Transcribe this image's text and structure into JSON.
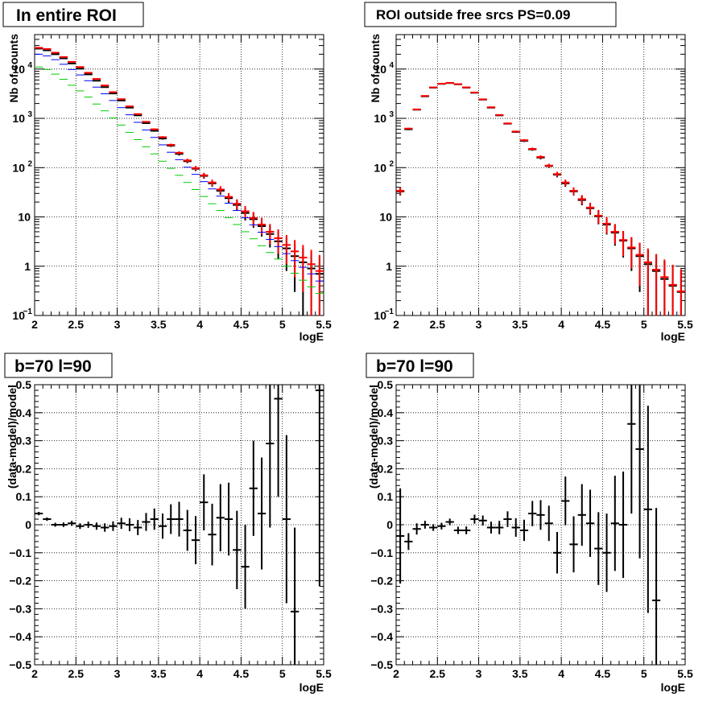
{
  "chart_data": [
    {
      "type": "scatter",
      "title": "In entire ROI",
      "xlabel": "logE",
      "ylabel": "Nb of counts",
      "xlim": [
        2,
        5.5
      ],
      "ylim": [
        0.1,
        50000
      ],
      "log_y": true,
      "grid": true,
      "legend": "none",
      "x_ticks": [
        "2",
        "2.5",
        "3",
        "3.5",
        "4",
        "4.5",
        "5",
        "5.5"
      ],
      "y_ticks": [
        {
          "base": "10",
          "exp": "−1",
          "value": 0.1
        },
        {
          "base": "1",
          "exp": "",
          "value": 1
        },
        {
          "base": "10",
          "exp": "",
          "value": 10
        },
        {
          "base": "10",
          "exp": "2",
          "value": 100
        },
        {
          "base": "10",
          "exp": "3",
          "value": 1000
        },
        {
          "base": "10",
          "exp": "4",
          "value": 10000
        }
      ],
      "x": [
        2.05,
        2.15,
        2.25,
        2.35,
        2.45,
        2.55,
        2.65,
        2.75,
        2.85,
        2.95,
        3.05,
        3.15,
        3.25,
        3.35,
        3.45,
        3.55,
        3.65,
        3.75,
        3.85,
        3.95,
        4.05,
        4.15,
        4.25,
        4.35,
        4.45,
        4.55,
        4.65,
        4.75,
        4.85,
        4.95,
        5.05,
        5.15,
        5.25,
        5.35,
        5.45
      ],
      "series": [
        {
          "color": "#000000",
          "width": 2,
          "values": [
            26000,
            24000,
            20000,
            16500,
            13000,
            10200,
            7800,
            5800,
            4300,
            3200,
            2300,
            1650,
            1150,
            800,
            560,
            390,
            280,
            190,
            135,
            95,
            68,
            48,
            34,
            24,
            17.5,
            12,
            9,
            6.5,
            4.5,
            3.2,
            2.3,
            1.6,
            1.2,
            0.9,
            0.7
          ],
          "errors": [
            160,
            155,
            140,
            128,
            114,
            101,
            88,
            76,
            66,
            57,
            48,
            41,
            34,
            28,
            24,
            20,
            17,
            14,
            12,
            10,
            8.2,
            6.9,
            5.8,
            4.9,
            4.2,
            3.5,
            3,
            2.5,
            2.1,
            1.8,
            1.5,
            1.3,
            1.1,
            0.95,
            0.84
          ]
        },
        {
          "color": "#ff0000",
          "width": 2,
          "values": [
            27000,
            25500,
            21500,
            17500,
            14000,
            11000,
            8400,
            6300,
            4650,
            3400,
            2450,
            1750,
            1220,
            850,
            600,
            415,
            290,
            200,
            140,
            98,
            70,
            50,
            36,
            25.5,
            18.5,
            13,
            9.5,
            7,
            5,
            3.7,
            2.7,
            2,
            1.5,
            1.1,
            0.8
          ],
          "errors": [
            164,
            160,
            147,
            132,
            118,
            105,
            92,
            79,
            68,
            58,
            49,
            42,
            35,
            29,
            24,
            20,
            17,
            14,
            12,
            9.9,
            8.4,
            7.1,
            6,
            5,
            4.3,
            3.6,
            3.1,
            2.6,
            2.2,
            1.9,
            1.6,
            1.4,
            1.2,
            1.05,
            0.89
          ]
        },
        {
          "color": "#0000ff",
          "width": 1,
          "values": [
            20000,
            18500,
            15500,
            12500,
            9800,
            7600,
            5800,
            4300,
            3150,
            2300,
            1650,
            1180,
            830,
            580,
            410,
            290,
            205,
            145,
            102,
            73,
            52,
            37,
            26.5,
            19,
            13.5,
            9.6,
            6.9,
            4.9,
            3.5,
            2.5,
            1.8,
            1.3,
            0.95,
            0.7,
            0.5
          ],
          "errors": [
            0,
            0,
            0,
            0,
            0,
            0,
            0,
            0,
            0,
            0,
            0,
            0,
            0,
            0,
            0,
            0,
            0,
            0,
            0,
            0,
            0,
            0,
            0,
            0,
            0,
            0,
            0,
            0,
            0,
            0,
            0,
            0,
            0,
            0,
            0
          ]
        },
        {
          "color": "#00cc00",
          "width": 1,
          "values": [
            11000,
            9800,
            7900,
            6200,
            4700,
            3600,
            2700,
            1950,
            1420,
            1020,
            730,
            520,
            370,
            265,
            190,
            135,
            97,
            70,
            50,
            36,
            26,
            18.5,
            13.5,
            9.7,
            7,
            5,
            3.6,
            2.6,
            1.9,
            1.4,
            1,
            0.72,
            0.52,
            0.38,
            0.28
          ],
          "errors": [
            0,
            0,
            0,
            0,
            0,
            0,
            0,
            0,
            0,
            0,
            0,
            0,
            0,
            0,
            0,
            0,
            0,
            0,
            0,
            0,
            0,
            0,
            0,
            0,
            0,
            0,
            0,
            0,
            0,
            0,
            0,
            0,
            0,
            0,
            0
          ]
        }
      ]
    },
    {
      "type": "scatter",
      "title": "ROI outside free srcs PS=0.09",
      "xlabel": "logE",
      "ylabel": "Nb of counts",
      "xlim": [
        2,
        5.5
      ],
      "ylim": [
        0.1,
        50000
      ],
      "log_y": true,
      "grid": true,
      "legend": "none",
      "x_ticks": [
        "2",
        "2.5",
        "3",
        "3.5",
        "4",
        "4.5",
        "5",
        "5.5"
      ],
      "y_ticks": [
        {
          "base": "10",
          "exp": "−1",
          "value": 0.1
        },
        {
          "base": "1",
          "exp": "",
          "value": 1
        },
        {
          "base": "10",
          "exp": "",
          "value": 10
        },
        {
          "base": "10",
          "exp": "2",
          "value": 100
        },
        {
          "base": "10",
          "exp": "3",
          "value": 1000
        },
        {
          "base": "10",
          "exp": "4",
          "value": 10000
        }
      ],
      "x": [
        2.05,
        2.15,
        2.25,
        2.35,
        2.45,
        2.55,
        2.65,
        2.75,
        2.85,
        2.95,
        3.05,
        3.15,
        3.25,
        3.35,
        3.45,
        3.55,
        3.65,
        3.75,
        3.85,
        3.95,
        4.05,
        4.15,
        4.25,
        4.35,
        4.45,
        4.55,
        4.65,
        4.75,
        4.85,
        4.95,
        5.05,
        5.15,
        5.25,
        5.35,
        5.45
      ],
      "series": [
        {
          "color": "#000000",
          "width": 2,
          "values": [
            33,
            600,
            1500,
            2800,
            4200,
            5000,
            5200,
            4900,
            4200,
            3300,
            2400,
            1650,
            1150,
            780,
            530,
            350,
            235,
            160,
            108,
            72,
            48,
            33,
            22,
            15,
            10.3,
            7,
            4.8,
            3.3,
            2.3,
            1.6,
            1.1,
            0.8,
            0.55,
            0.4,
            0.3
          ],
          "errors": [
            5.7,
            24,
            39,
            53,
            65,
            71,
            72,
            70,
            65,
            57,
            49,
            41,
            34,
            28,
            23,
            19,
            15,
            13,
            10,
            8.5,
            6.9,
            5.7,
            4.7,
            3.9,
            3.2,
            2.6,
            2.2,
            1.8,
            1.5,
            1.3,
            1.05,
            0.89,
            0.74,
            0.63,
            0.55
          ]
        },
        {
          "color": "#ff0000",
          "width": 2,
          "values": [
            34,
            620,
            1520,
            2850,
            4250,
            5050,
            5250,
            4950,
            4250,
            3350,
            2430,
            1680,
            1170,
            790,
            540,
            360,
            240,
            165,
            110,
            74,
            50,
            34,
            23,
            15.5,
            10.6,
            7.3,
            5,
            3.4,
            2.4,
            1.7,
            1.2,
            0.85,
            0.6,
            0.42,
            0.31
          ],
          "errors": [
            5.8,
            25,
            39,
            53,
            65,
            71,
            72,
            70,
            65,
            58,
            49,
            41,
            34,
            28,
            23,
            19,
            15,
            13,
            10,
            8.6,
            7.1,
            5.8,
            4.8,
            3.9,
            3.3,
            2.7,
            2.2,
            1.8,
            1.5,
            1.3,
            1.1,
            0.92,
            0.77,
            0.65,
            0.56
          ]
        }
      ]
    },
    {
      "type": "scatter",
      "title": "b=70 l=90",
      "xlabel": "logE",
      "ylabel": "(data-model)/model",
      "xlim": [
        2,
        5.5
      ],
      "ylim": [
        -0.5,
        0.5
      ],
      "log_y": false,
      "grid": true,
      "legend": "none",
      "x_ticks": [
        "2",
        "2.5",
        "3",
        "3.5",
        "4",
        "4.5",
        "5",
        "5.5"
      ],
      "y_ticks": [
        {
          "label": "−0.5",
          "value": -0.5
        },
        {
          "label": "−0.4",
          "value": -0.4
        },
        {
          "label": "−0.3",
          "value": -0.3
        },
        {
          "label": "−0.2",
          "value": -0.2
        },
        {
          "label": "−0.1",
          "value": -0.1
        },
        {
          "label": "0",
          "value": 0
        },
        {
          "label": "0.1",
          "value": 0.1
        },
        {
          "label": "0.2",
          "value": 0.2
        },
        {
          "label": "0.3",
          "value": 0.3
        },
        {
          "label": "0.4",
          "value": 0.4
        },
        {
          "label": "0.5",
          "value": 0.5
        }
      ],
      "x": [
        2.05,
        2.15,
        2.25,
        2.35,
        2.45,
        2.55,
        2.65,
        2.75,
        2.85,
        2.95,
        3.05,
        3.15,
        3.25,
        3.35,
        3.45,
        3.55,
        3.65,
        3.75,
        3.85,
        3.95,
        4.05,
        4.15,
        4.25,
        4.35,
        4.45,
        4.55,
        4.65,
        4.75,
        4.85,
        4.95,
        5.05,
        5.15,
        5.45
      ],
      "series": [
        {
          "color": "#000000",
          "width": 2,
          "values": [
            0.04,
            0.02,
            0.0,
            0.0,
            0.005,
            -0.005,
            0.0,
            -0.005,
            -0.01,
            -0.005,
            0.005,
            0.0,
            -0.01,
            0.01,
            0.02,
            -0.005,
            0.02,
            0.02,
            -0.02,
            -0.055,
            0.08,
            -0.035,
            0.025,
            0.02,
            -0.09,
            -0.15,
            0.13,
            0.04,
            0.29,
            0.45,
            0.02,
            -0.31,
            0.48
          ],
          "errors": [
            0.006,
            0.006,
            0.007,
            0.008,
            0.009,
            0.01,
            0.011,
            0.013,
            0.015,
            0.017,
            0.02,
            0.023,
            0.027,
            0.032,
            0.038,
            0.045,
            0.053,
            0.062,
            0.073,
            0.086,
            0.1,
            0.11,
            0.12,
            0.13,
            0.14,
            0.15,
            0.17,
            0.2,
            0.3,
            0.35,
            0.3,
            0.3,
            0.7
          ]
        }
      ]
    },
    {
      "type": "scatter",
      "title": "b=70 l=90",
      "xlabel": "logE",
      "ylabel": "(data-model)/model",
      "xlim": [
        2,
        5.5
      ],
      "ylim": [
        -0.5,
        0.5
      ],
      "log_y": false,
      "grid": true,
      "legend": "none",
      "x_ticks": [
        "2",
        "2.5",
        "3",
        "3.5",
        "4",
        "4.5",
        "5",
        "5.5"
      ],
      "y_ticks": [
        {
          "label": "−0.5",
          "value": -0.5
        },
        {
          "label": "−0.4",
          "value": -0.4
        },
        {
          "label": "−0.3",
          "value": -0.3
        },
        {
          "label": "−0.2",
          "value": -0.2
        },
        {
          "label": "−0.1",
          "value": -0.1
        },
        {
          "label": "0",
          "value": 0
        },
        {
          "label": "0.1",
          "value": 0.1
        },
        {
          "label": "0.2",
          "value": 0.2
        },
        {
          "label": "0.3",
          "value": 0.3
        },
        {
          "label": "0.4",
          "value": 0.4
        },
        {
          "label": "0.5",
          "value": 0.5
        }
      ],
      "x": [
        2.05,
        2.15,
        2.25,
        2.35,
        2.45,
        2.55,
        2.65,
        2.75,
        2.85,
        2.95,
        3.05,
        3.15,
        3.25,
        3.35,
        3.45,
        3.55,
        3.65,
        3.75,
        3.85,
        3.95,
        4.05,
        4.15,
        4.25,
        4.35,
        4.45,
        4.55,
        4.65,
        4.75,
        4.85,
        4.95,
        5.05,
        5.15
      ],
      "series": [
        {
          "color": "#000000",
          "width": 2,
          "values": [
            -0.04,
            -0.06,
            -0.015,
            0.0,
            -0.01,
            -0.005,
            0.01,
            -0.02,
            -0.02,
            0.02,
            0.015,
            -0.01,
            -0.01,
            0.02,
            -0.01,
            -0.02,
            0.04,
            0.035,
            0.005,
            -0.1,
            0.085,
            -0.07,
            0.035,
            0.005,
            -0.085,
            -0.1,
            0.005,
            0.0,
            0.36,
            0.27,
            0.055,
            -0.27
          ],
          "errors": [
            0.17,
            0.03,
            0.02,
            0.014,
            0.012,
            0.012,
            0.012,
            0.013,
            0.014,
            0.016,
            0.018,
            0.021,
            0.024,
            0.028,
            0.033,
            0.038,
            0.045,
            0.053,
            0.063,
            0.074,
            0.087,
            0.1,
            0.11,
            0.12,
            0.13,
            0.14,
            0.17,
            0.19,
            0.32,
            0.39,
            0.37,
            0.33
          ]
        }
      ]
    }
  ]
}
